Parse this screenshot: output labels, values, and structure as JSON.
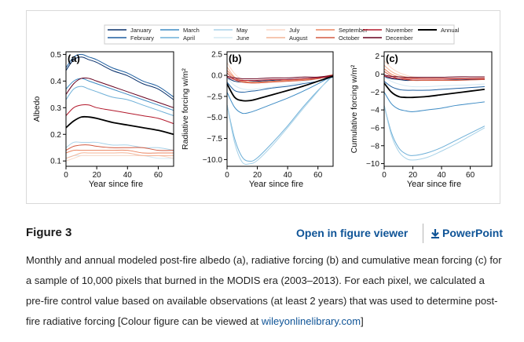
{
  "figure": {
    "heading": "Figure 3",
    "open_viewer_label": "Open in figure viewer",
    "powerpoint_label": "PowerPoint",
    "download_icon": "download-icon",
    "caption_text": "Monthly and annual modeled post-fire albedo (a), radiative forcing (b) and cumulative mean forcing (c) for a sample of 10,000 pixels that burned in the MODIS era (2003–2013). For each pixel, we calculated a pre-fire control value based on available observations (at least 2 years) that was used to determine post-fire radiative forcing [Colour figure can be viewed at ",
    "caption_link": "wileyonlinelibrary.com",
    "caption_end": "]"
  },
  "chart_data": [
    {
      "type": "line",
      "panel_label": "(a)",
      "xlabel": "Year since fire",
      "ylabel": "Albedo",
      "xlim": [
        0,
        70
      ],
      "ylim": [
        0.08,
        0.51
      ],
      "xticks": [
        0,
        20,
        40,
        60
      ],
      "yticks": [
        0.1,
        0.2,
        0.3,
        0.4,
        0.5
      ],
      "ytick_labels": [
        "0.1",
        "0.2",
        "0.3",
        "0.4",
        "0.5"
      ],
      "x": [
        0,
        5,
        10,
        15,
        20,
        30,
        40,
        50,
        60,
        70
      ],
      "series": [
        {
          "name": "January",
          "color": "#08306b",
          "width": 1.0,
          "values": [
            0.44,
            0.48,
            0.49,
            0.48,
            0.47,
            0.44,
            0.42,
            0.39,
            0.37,
            0.33
          ]
        },
        {
          "name": "February",
          "color": "#1f5fa0",
          "width": 1.0,
          "values": [
            0.45,
            0.49,
            0.5,
            0.49,
            0.48,
            0.45,
            0.43,
            0.4,
            0.38,
            0.34
          ]
        },
        {
          "name": "March",
          "color": "#3d8bc4",
          "width": 1.0,
          "values": [
            0.37,
            0.4,
            0.41,
            0.4,
            0.39,
            0.37,
            0.35,
            0.33,
            0.31,
            0.29
          ]
        },
        {
          "name": "April",
          "color": "#6fb0d8",
          "width": 1.0,
          "values": [
            0.33,
            0.37,
            0.38,
            0.37,
            0.36,
            0.34,
            0.33,
            0.31,
            0.29,
            0.27
          ]
        },
        {
          "name": "May",
          "color": "#a8d2e8",
          "width": 1.0,
          "values": [
            0.15,
            0.17,
            0.17,
            0.17,
            0.17,
            0.16,
            0.16,
            0.15,
            0.15,
            0.14
          ]
        },
        {
          "name": "June",
          "color": "#d4e8f3",
          "width": 1.0,
          "values": [
            0.11,
            0.12,
            0.12,
            0.12,
            0.12,
            0.12,
            0.12,
            0.12,
            0.11,
            0.11
          ]
        },
        {
          "name": "July",
          "color": "#fbd9c7",
          "width": 1.0,
          "values": [
            0.1,
            0.11,
            0.12,
            0.12,
            0.12,
            0.12,
            0.12,
            0.12,
            0.12,
            0.11
          ]
        },
        {
          "name": "August",
          "color": "#f4b496",
          "width": 1.0,
          "values": [
            0.11,
            0.12,
            0.13,
            0.13,
            0.13,
            0.13,
            0.13,
            0.12,
            0.12,
            0.12
          ]
        },
        {
          "name": "September",
          "color": "#ec8561",
          "width": 1.0,
          "values": [
            0.13,
            0.14,
            0.14,
            0.14,
            0.14,
            0.14,
            0.14,
            0.13,
            0.13,
            0.13
          ]
        },
        {
          "name": "October",
          "color": "#d35a40",
          "width": 1.0,
          "values": [
            0.14,
            0.155,
            0.16,
            0.16,
            0.155,
            0.15,
            0.15,
            0.15,
            0.14,
            0.14
          ]
        },
        {
          "name": "November",
          "color": "#b2182b",
          "width": 1.0,
          "values": [
            0.27,
            0.3,
            0.31,
            0.31,
            0.3,
            0.29,
            0.28,
            0.27,
            0.26,
            0.24
          ]
        },
        {
          "name": "December",
          "color": "#67001f",
          "width": 1.0,
          "values": [
            0.35,
            0.39,
            0.41,
            0.41,
            0.4,
            0.38,
            0.36,
            0.34,
            0.32,
            0.3
          ]
        },
        {
          "name": "Annual",
          "color": "#000000",
          "width": 1.8,
          "values": [
            0.225,
            0.25,
            0.265,
            0.265,
            0.26,
            0.245,
            0.235,
            0.225,
            0.215,
            0.2
          ]
        }
      ]
    },
    {
      "type": "line",
      "panel_label": "(b)",
      "xlabel": "Year since fire",
      "ylabel": "Radiative forcing w/m²",
      "xlim": [
        0,
        70
      ],
      "ylim": [
        -10.8,
        2.8
      ],
      "xticks": [
        0,
        20,
        40,
        60
      ],
      "yticks": [
        2.5,
        0.0,
        -2.5,
        -5.0,
        -7.5,
        -10.0
      ],
      "ytick_labels": [
        "2.5",
        "0.0",
        "−2.5",
        "−5.0",
        "−7.5",
        "−10.0"
      ],
      "x": [
        0,
        5,
        10,
        15,
        20,
        30,
        40,
        50,
        60,
        70
      ],
      "series": [
        {
          "name": "January",
          "color": "#08306b",
          "width": 1.0,
          "values": [
            -0.3,
            -0.7,
            -0.8,
            -0.75,
            -0.7,
            -0.6,
            -0.5,
            -0.4,
            -0.3,
            -0.2
          ]
        },
        {
          "name": "February",
          "color": "#1f5fa0",
          "width": 1.0,
          "values": [
            -0.8,
            -1.8,
            -2.0,
            -1.9,
            -1.8,
            -1.5,
            -1.3,
            -1.0,
            -0.7,
            -0.2
          ]
        },
        {
          "name": "March",
          "color": "#3d8bc4",
          "width": 1.0,
          "values": [
            -2.0,
            -3.8,
            -4.5,
            -4.4,
            -4.1,
            -3.4,
            -2.7,
            -1.9,
            -1.0,
            0.0
          ]
        },
        {
          "name": "April",
          "color": "#6fb0d8",
          "width": 1.0,
          "values": [
            -3.5,
            -7.5,
            -9.7,
            -10.2,
            -9.8,
            -8.0,
            -6.0,
            -3.8,
            -1.8,
            0.0
          ]
        },
        {
          "name": "May",
          "color": "#a8d2e8",
          "width": 1.0,
          "values": [
            -3.5,
            -8.0,
            -10.3,
            -10.5,
            -10.1,
            -8.3,
            -6.2,
            -4.0,
            -1.9,
            0.2
          ]
        },
        {
          "name": "June",
          "color": "#d4e8f3",
          "width": 1.0,
          "values": [
            -0.3,
            -1.2,
            -1.6,
            -1.7,
            -1.6,
            -1.4,
            -1.1,
            -0.8,
            -0.4,
            0.1
          ]
        },
        {
          "name": "July",
          "color": "#fbd9c7",
          "width": 1.0,
          "values": [
            1.5,
            0.2,
            -0.5,
            -0.8,
            -0.8,
            -0.7,
            -0.6,
            -0.5,
            -0.3,
            0.0
          ]
        },
        {
          "name": "August",
          "color": "#f4b496",
          "width": 1.0,
          "values": [
            1.0,
            -0.2,
            -0.6,
            -0.8,
            -0.8,
            -0.7,
            -0.6,
            -0.5,
            -0.3,
            0.0
          ]
        },
        {
          "name": "September",
          "color": "#ec8561",
          "width": 1.0,
          "values": [
            0.6,
            -0.3,
            -0.7,
            -0.8,
            -0.8,
            -0.7,
            -0.6,
            -0.5,
            -0.3,
            0.1
          ]
        },
        {
          "name": "October",
          "color": "#d35a40",
          "width": 1.0,
          "values": [
            0.3,
            -0.5,
            -0.8,
            -0.9,
            -0.9,
            -0.8,
            -0.7,
            -0.6,
            -0.4,
            0.0
          ]
        },
        {
          "name": "November",
          "color": "#b2182b",
          "width": 1.0,
          "values": [
            -0.2,
            -0.5,
            -0.6,
            -0.6,
            -0.6,
            -0.5,
            -0.5,
            -0.4,
            -0.3,
            -0.1
          ]
        },
        {
          "name": "December",
          "color": "#67001f",
          "width": 1.0,
          "values": [
            -0.1,
            -0.3,
            -0.4,
            -0.4,
            -0.4,
            -0.3,
            -0.3,
            -0.2,
            -0.2,
            0.0
          ]
        },
        {
          "name": "Annual",
          "color": "#000000",
          "width": 1.8,
          "values": [
            -1.0,
            -2.6,
            -3.0,
            -3.0,
            -2.8,
            -2.3,
            -1.8,
            -1.3,
            -0.7,
            -0.1
          ]
        }
      ]
    },
    {
      "type": "line",
      "panel_label": "(c)",
      "xlabel": "Year since fire",
      "ylabel": "Cumulative forcing w/m²",
      "xlim": [
        0,
        75
      ],
      "ylim": [
        -10.3,
        2.5
      ],
      "xticks": [
        0,
        20,
        40,
        60
      ],
      "yticks": [
        2,
        0,
        -2,
        -4,
        -6,
        -8,
        -10
      ],
      "ytick_labels": [
        "2",
        "0",
        "−2",
        "−4",
        "−6",
        "−8",
        "−10"
      ],
      "x": [
        0,
        5,
        10,
        15,
        20,
        30,
        40,
        50,
        60,
        70
      ],
      "series": [
        {
          "name": "January",
          "color": "#08306b",
          "width": 1.0,
          "values": [
            -0.3,
            -0.5,
            -0.6,
            -0.7,
            -0.7,
            -0.7,
            -0.7,
            -0.65,
            -0.6,
            -0.6
          ]
        },
        {
          "name": "February",
          "color": "#1f5fa0",
          "width": 1.0,
          "values": [
            -0.8,
            -1.4,
            -1.7,
            -1.8,
            -1.8,
            -1.8,
            -1.7,
            -1.6,
            -1.5,
            -1.4
          ]
        },
        {
          "name": "March",
          "color": "#3d8bc4",
          "width": 1.0,
          "values": [
            -2.0,
            -3.3,
            -3.9,
            -4.1,
            -4.2,
            -4.0,
            -3.8,
            -3.5,
            -3.3,
            -3.1
          ]
        },
        {
          "name": "April",
          "color": "#6fb0d8",
          "width": 1.0,
          "values": [
            -3.5,
            -6.5,
            -8.2,
            -8.9,
            -9.1,
            -8.8,
            -8.2,
            -7.4,
            -6.6,
            -5.8
          ]
        },
        {
          "name": "May",
          "color": "#a8d2e8",
          "width": 1.0,
          "values": [
            -3.5,
            -6.8,
            -8.6,
            -9.4,
            -9.6,
            -9.3,
            -8.6,
            -7.8,
            -6.9,
            -6.0
          ]
        },
        {
          "name": "June",
          "color": "#d4e8f3",
          "width": 1.0,
          "values": [
            -0.3,
            -0.8,
            -1.1,
            -1.3,
            -1.4,
            -1.4,
            -1.3,
            -1.25,
            -1.2,
            -1.1
          ]
        },
        {
          "name": "July",
          "color": "#fbd9c7",
          "width": 1.0,
          "values": [
            1.5,
            0.7,
            0.2,
            -0.1,
            -0.3,
            -0.4,
            -0.45,
            -0.45,
            -0.45,
            -0.4
          ]
        },
        {
          "name": "August",
          "color": "#f4b496",
          "width": 1.0,
          "values": [
            1.0,
            0.3,
            -0.1,
            -0.3,
            -0.4,
            -0.5,
            -0.5,
            -0.5,
            -0.5,
            -0.45
          ]
        },
        {
          "name": "September",
          "color": "#ec8561",
          "width": 1.0,
          "values": [
            0.6,
            0.0,
            -0.3,
            -0.45,
            -0.5,
            -0.55,
            -0.55,
            -0.55,
            -0.5,
            -0.5
          ]
        },
        {
          "name": "October",
          "color": "#d35a40",
          "width": 1.0,
          "values": [
            0.3,
            -0.2,
            -0.5,
            -0.6,
            -0.7,
            -0.7,
            -0.7,
            -0.7,
            -0.65,
            -0.6
          ]
        },
        {
          "name": "November",
          "color": "#b2182b",
          "width": 1.0,
          "values": [
            -0.2,
            -0.4,
            -0.5,
            -0.55,
            -0.55,
            -0.55,
            -0.55,
            -0.5,
            -0.5,
            -0.5
          ]
        },
        {
          "name": "December",
          "color": "#67001f",
          "width": 1.0,
          "values": [
            -0.1,
            -0.25,
            -0.3,
            -0.35,
            -0.35,
            -0.35,
            -0.35,
            -0.3,
            -0.3,
            -0.3
          ]
        },
        {
          "name": "Annual",
          "color": "#000000",
          "width": 1.8,
          "values": [
            -1.0,
            -2.0,
            -2.5,
            -2.6,
            -2.6,
            -2.5,
            -2.3,
            -2.1,
            -1.9,
            -1.7
          ]
        }
      ]
    }
  ],
  "legend": {
    "entries": [
      {
        "name": "January",
        "color": "#08306b"
      },
      {
        "name": "February",
        "color": "#1f5fa0"
      },
      {
        "name": "March",
        "color": "#3d8bc4"
      },
      {
        "name": "April",
        "color": "#6fb0d8"
      },
      {
        "name": "May",
        "color": "#a8d2e8"
      },
      {
        "name": "June",
        "color": "#d4e8f3"
      },
      {
        "name": "July",
        "color": "#fbd9c7"
      },
      {
        "name": "August",
        "color": "#f4b496"
      },
      {
        "name": "September",
        "color": "#ec8561"
      },
      {
        "name": "October",
        "color": "#d35a40"
      },
      {
        "name": "November",
        "color": "#b2182b"
      },
      {
        "name": "December",
        "color": "#67001f"
      },
      {
        "name": "Annual",
        "color": "#000000"
      }
    ]
  }
}
